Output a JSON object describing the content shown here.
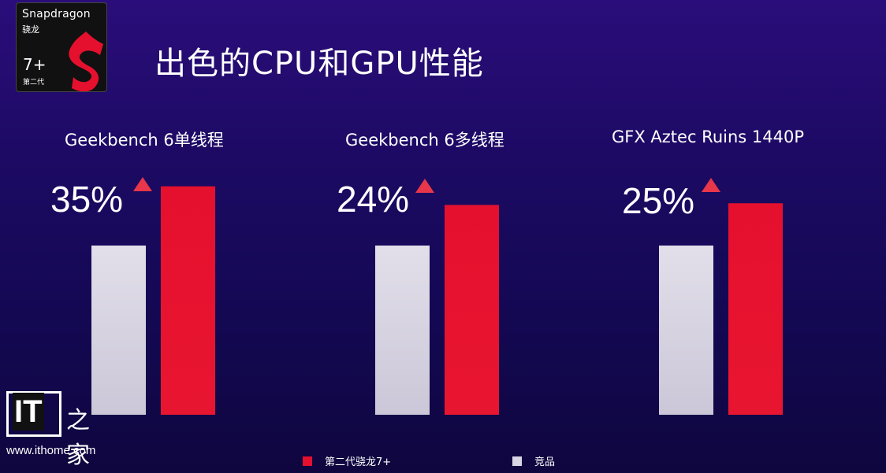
{
  "logo": {
    "brand": "Snapdragon",
    "brand_cn": "骁龙",
    "tier": "7+",
    "generation": "第二代"
  },
  "page_title": "出色的CPU和GPU性能",
  "colors": {
    "snapdragon": "#e5102e",
    "competitor": "#d9d5e4",
    "arrow": "#e8364a"
  },
  "chart_data": [
    {
      "type": "bar",
      "title": "Geekbench 6单线程",
      "annotation": "35%",
      "categories": [
        "竞品",
        "第二代骁龙7+"
      ],
      "values": [
        1.0,
        1.35
      ]
    },
    {
      "type": "bar",
      "title": "Geekbench 6多线程",
      "annotation": "24%",
      "categories": [
        "竞品",
        "第二代骁龙7+"
      ],
      "values": [
        1.0,
        1.24
      ]
    },
    {
      "type": "bar",
      "title": "GFX Aztec Ruins 1440P",
      "annotation": "25%",
      "categories": [
        "竞品",
        "第二代骁龙7+"
      ],
      "values": [
        1.0,
        1.25
      ]
    }
  ],
  "legend": [
    {
      "label": "第二代骁龙7+",
      "color": "#e5102e"
    },
    {
      "label": "竞品",
      "color": "#d9d5e4"
    }
  ],
  "watermark": {
    "logo_text": "IT",
    "logo_cn": "之家",
    "url": "www.ithome.com"
  }
}
